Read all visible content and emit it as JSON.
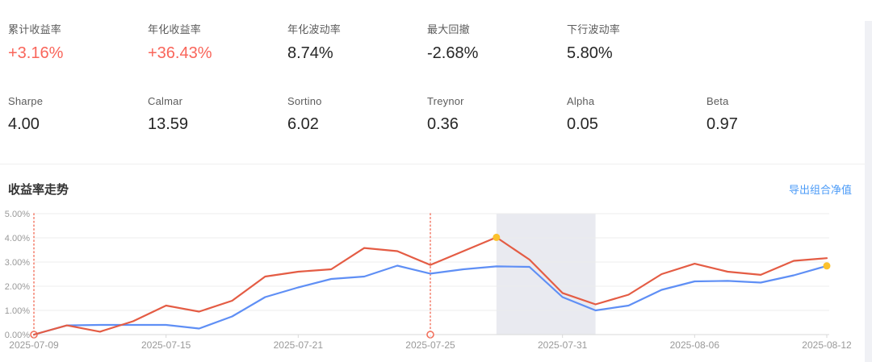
{
  "metrics": {
    "row1": [
      {
        "label": "累计收益率",
        "value": "+3.16%",
        "highlight": true
      },
      {
        "label": "年化收益率",
        "value": "+36.43%",
        "highlight": true
      },
      {
        "label": "年化波动率",
        "value": "8.74%",
        "highlight": false
      },
      {
        "label": "最大回撤",
        "value": "-2.68%",
        "highlight": false
      },
      {
        "label": "下行波动率",
        "value": "5.80%",
        "highlight": false
      }
    ],
    "row2": [
      {
        "label": "Sharpe",
        "value": "4.00"
      },
      {
        "label": "Calmar",
        "value": "13.59"
      },
      {
        "label": "Sortino",
        "value": "6.02"
      },
      {
        "label": "Treynor",
        "value": "0.36"
      },
      {
        "label": "Alpha",
        "value": "0.05"
      },
      {
        "label": "Beta",
        "value": "0.97"
      }
    ]
  },
  "section": {
    "title": "收益率走势",
    "export_label": "导出组合净值"
  },
  "colors": {
    "metric_highlight": "#f9655a",
    "link_blue": "#4b9bf7",
    "line_red": "#e45c44",
    "line_blue": "#5f8ff5",
    "marker_yellow": "#fbc12d",
    "event_line_red": "#f2705c",
    "region_gray": "#e9eaf0",
    "grid_line": "#ececec",
    "axis_line": "#d9d9d9",
    "tick_text": "#999999"
  },
  "chart_data": {
    "type": "line",
    "title": "收益率走势",
    "x": [
      "2025-07-09",
      "2025-07-10",
      "2025-07-11",
      "2025-07-14",
      "2025-07-15",
      "2025-07-16",
      "2025-07-17",
      "2025-07-18",
      "2025-07-21",
      "2025-07-22",
      "2025-07-23",
      "2025-07-24",
      "2025-07-25",
      "2025-07-28",
      "2025-07-29",
      "2025-07-30",
      "2025-07-31",
      "2025-08-01",
      "2025-08-04",
      "2025-08-05",
      "2025-08-06",
      "2025-08-07",
      "2025-08-08",
      "2025-08-11",
      "2025-08-12"
    ],
    "x_tick_indices": [
      0,
      4,
      8,
      12,
      16,
      20,
      24
    ],
    "x_tick_labels": [
      "2025-07-09",
      "2025-07-15",
      "2025-07-21",
      "2025-07-25",
      "2025-07-31",
      "2025-08-06",
      "2025-08-12"
    ],
    "ylim": [
      0,
      5
    ],
    "y_tick_labels": [
      "0.00%",
      "1.00%",
      "2.00%",
      "3.00%",
      "4.00%",
      "5.00%"
    ],
    "grid": true,
    "legend": "none",
    "unit": "%",
    "series": [
      {
        "name": "series_red",
        "color": "#e45c44",
        "values": [
          0.0,
          0.38,
          0.12,
          0.55,
          1.2,
          0.95,
          1.4,
          2.4,
          2.6,
          2.7,
          3.58,
          3.45,
          2.88,
          3.45,
          4.02,
          3.1,
          1.72,
          1.25,
          1.65,
          2.5,
          2.93,
          2.6,
          2.47,
          3.05,
          3.16
        ]
      },
      {
        "name": "series_blue",
        "color": "#5f8ff5",
        "values": [
          0.0,
          0.38,
          0.4,
          0.4,
          0.4,
          0.25,
          0.75,
          1.55,
          1.95,
          2.3,
          2.4,
          2.85,
          2.52,
          2.7,
          2.82,
          2.8,
          1.55,
          1.0,
          1.2,
          1.85,
          2.2,
          2.22,
          2.15,
          2.45,
          2.84
        ]
      }
    ],
    "markers": [
      {
        "series": 0,
        "index": 14,
        "color": "#fbc12d"
      },
      {
        "series": 1,
        "index": 24,
        "color": "#fbc12d"
      }
    ],
    "event_lines": {
      "indices": [
        0,
        12
      ],
      "color": "#f2705c"
    },
    "shaded_region": {
      "from_index": 14,
      "to_index": 17,
      "color": "#e9eaf0"
    }
  }
}
